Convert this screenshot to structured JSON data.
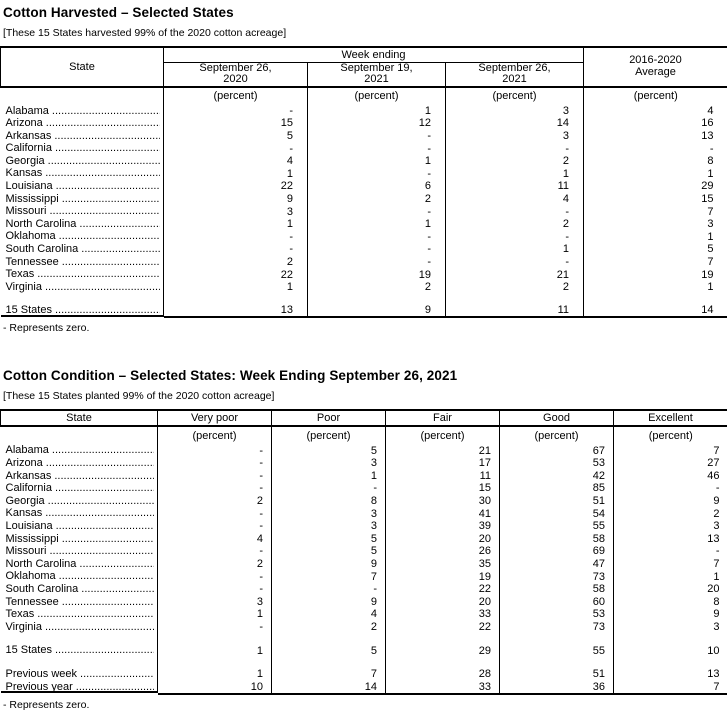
{
  "table1": {
    "title": "Cotton Harvested – Selected States",
    "subtitle": "[These 15 States harvested 99% of the 2020 cotton acreage]",
    "state_header": "State",
    "group_header": "Week ending",
    "columns": [
      "September 26,\n2020",
      "September 19,\n2021",
      "September 26,\n2021"
    ],
    "avg_header": "2016-2020\nAverage",
    "unit": "(percent)",
    "rows": [
      {
        "state": "Alabama",
        "values": [
          "-",
          "1",
          "3",
          "4"
        ]
      },
      {
        "state": "Arizona",
        "values": [
          "15",
          "12",
          "14",
          "16"
        ]
      },
      {
        "state": "Arkansas",
        "values": [
          "5",
          "-",
          "3",
          "13"
        ]
      },
      {
        "state": "California",
        "values": [
          "-",
          "-",
          "-",
          "-"
        ]
      },
      {
        "state": "Georgia",
        "values": [
          "4",
          "1",
          "2",
          "8"
        ]
      },
      {
        "state": "Kansas",
        "values": [
          "1",
          "-",
          "1",
          "1"
        ]
      },
      {
        "state": "Louisiana",
        "values": [
          "22",
          "6",
          "11",
          "29"
        ]
      },
      {
        "state": "Mississippi",
        "values": [
          "9",
          "2",
          "4",
          "15"
        ]
      },
      {
        "state": "Missouri",
        "values": [
          "3",
          "-",
          "-",
          "7"
        ]
      },
      {
        "state": "North Carolina",
        "values": [
          "1",
          "1",
          "2",
          "3"
        ]
      },
      {
        "state": "Oklahoma",
        "values": [
          "-",
          "-",
          "-",
          "1"
        ]
      },
      {
        "state": "South Carolina",
        "values": [
          "-",
          "-",
          "1",
          "5"
        ]
      },
      {
        "state": "Tennessee",
        "values": [
          "2",
          "-",
          "-",
          "7"
        ]
      },
      {
        "state": "Texas",
        "values": [
          "22",
          "19",
          "21",
          "19"
        ]
      },
      {
        "state": "Virginia",
        "values": [
          "1",
          "2",
          "2",
          "1"
        ]
      }
    ],
    "total_row": {
      "state": "15 States",
      "values": [
        "13",
        "9",
        "11",
        "14"
      ]
    },
    "footnote": "- Represents zero."
  },
  "table2": {
    "title": "Cotton Condition – Selected States: Week Ending September 26, 2021",
    "subtitle": "[These 15 States planted 99% of the 2020 cotton acreage]",
    "col_headers": [
      "State",
      "Very poor",
      "Poor",
      "Fair",
      "Good",
      "Excellent"
    ],
    "unit": "(percent)",
    "rows": [
      {
        "state": "Alabama",
        "values": [
          "-",
          "5",
          "21",
          "67",
          "7"
        ]
      },
      {
        "state": "Arizona",
        "values": [
          "-",
          "3",
          "17",
          "53",
          "27"
        ]
      },
      {
        "state": "Arkansas",
        "values": [
          "-",
          "1",
          "11",
          "42",
          "46"
        ]
      },
      {
        "state": "California",
        "values": [
          "-",
          "-",
          "15",
          "85",
          "-"
        ]
      },
      {
        "state": "Georgia",
        "values": [
          "2",
          "8",
          "30",
          "51",
          "9"
        ]
      },
      {
        "state": "Kansas",
        "values": [
          "-",
          "3",
          "41",
          "54",
          "2"
        ]
      },
      {
        "state": "Louisiana",
        "values": [
          "-",
          "3",
          "39",
          "55",
          "3"
        ]
      },
      {
        "state": "Mississippi",
        "values": [
          "4",
          "5",
          "20",
          "58",
          "13"
        ]
      },
      {
        "state": "Missouri",
        "values": [
          "-",
          "5",
          "26",
          "69",
          "-"
        ]
      },
      {
        "state": "North Carolina",
        "values": [
          "2",
          "9",
          "35",
          "47",
          "7"
        ]
      },
      {
        "state": "Oklahoma",
        "values": [
          "-",
          "7",
          "19",
          "73",
          "1"
        ]
      },
      {
        "state": "South Carolina",
        "values": [
          "-",
          "-",
          "22",
          "58",
          "20"
        ]
      },
      {
        "state": "Tennessee",
        "values": [
          "3",
          "9",
          "20",
          "60",
          "8"
        ]
      },
      {
        "state": "Texas",
        "values": [
          "1",
          "4",
          "33",
          "53",
          "9"
        ]
      },
      {
        "state": "Virginia",
        "values": [
          "-",
          "2",
          "22",
          "73",
          "3"
        ]
      }
    ],
    "total_row": {
      "state": "15 States",
      "values": [
        "1",
        "5",
        "29",
        "55",
        "10"
      ]
    },
    "comparison_rows": [
      {
        "state": "Previous week",
        "values": [
          "1",
          "7",
          "28",
          "51",
          "13"
        ]
      },
      {
        "state": "Previous year",
        "values": [
          "10",
          "14",
          "33",
          "36",
          "7"
        ]
      }
    ],
    "footnote": "- Represents zero."
  }
}
